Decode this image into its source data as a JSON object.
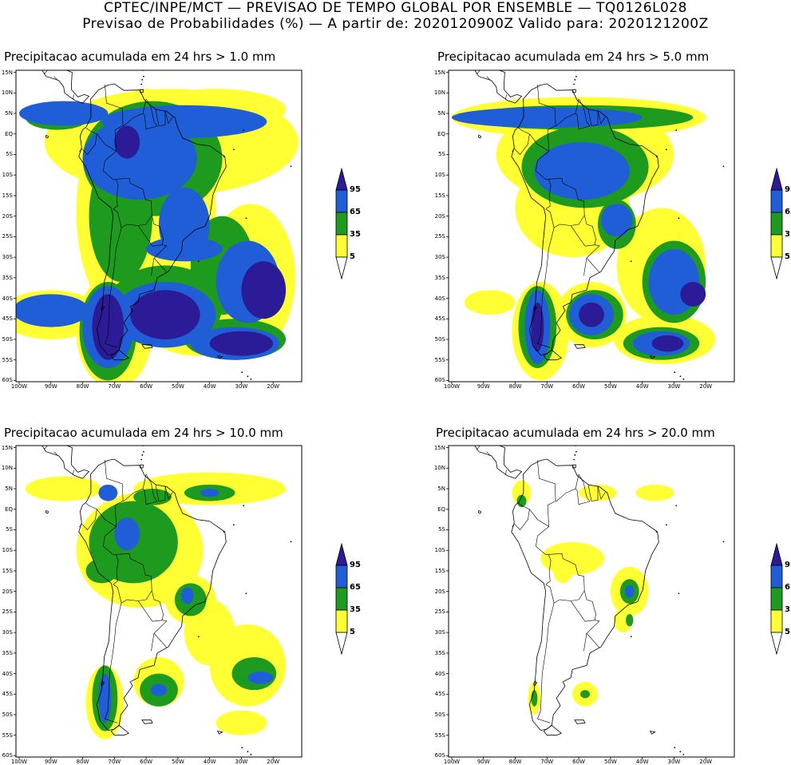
{
  "header": {
    "line1": "CPTEC/INPE/MCT — PREVISAO DE TEMPO GLOBAL POR ENSEMBLE — TQ0126L028",
    "line2": "Previsao de Probabilidades (%) —  A partir de: 2020120900Z  Valido para: 2020121200Z"
  },
  "colors": {
    "p5": "#ffff33",
    "p35": "#1e9b1e",
    "p65": "#1f5ed6",
    "p95": "#2c1b96",
    "land": "#ffffff",
    "ocean": "#ffffff",
    "outline": "#000000"
  },
  "legend": {
    "levels": [
      "95",
      "65",
      "35",
      "5"
    ]
  },
  "axes": {
    "lat_labels": [
      "15N",
      "10N",
      "5N",
      "EQ",
      "5S",
      "10S",
      "15S",
      "20S",
      "25S",
      "30S",
      "35S",
      "40S",
      "45S",
      "50S",
      "55S",
      "60S"
    ],
    "lon_labels": [
      "100W",
      "90W",
      "80W",
      "70W",
      "60W",
      "50W",
      "40W",
      "30W",
      "20W"
    ]
  },
  "panels": [
    {
      "id": "p1",
      "title": "Precipitacao acumulada em 24 hrs > 1.0 mm"
    },
    {
      "id": "p2",
      "title": "Precipitacao acumulada em 24 hrs > 5.0 mm"
    },
    {
      "id": "p3",
      "title": "Precipitacao acumulada em 24 hrs > 10.0 mm"
    },
    {
      "id": "p4",
      "title": "Precipitacao acumulada em 24 hrs > 20.0 mm"
    }
  ]
}
